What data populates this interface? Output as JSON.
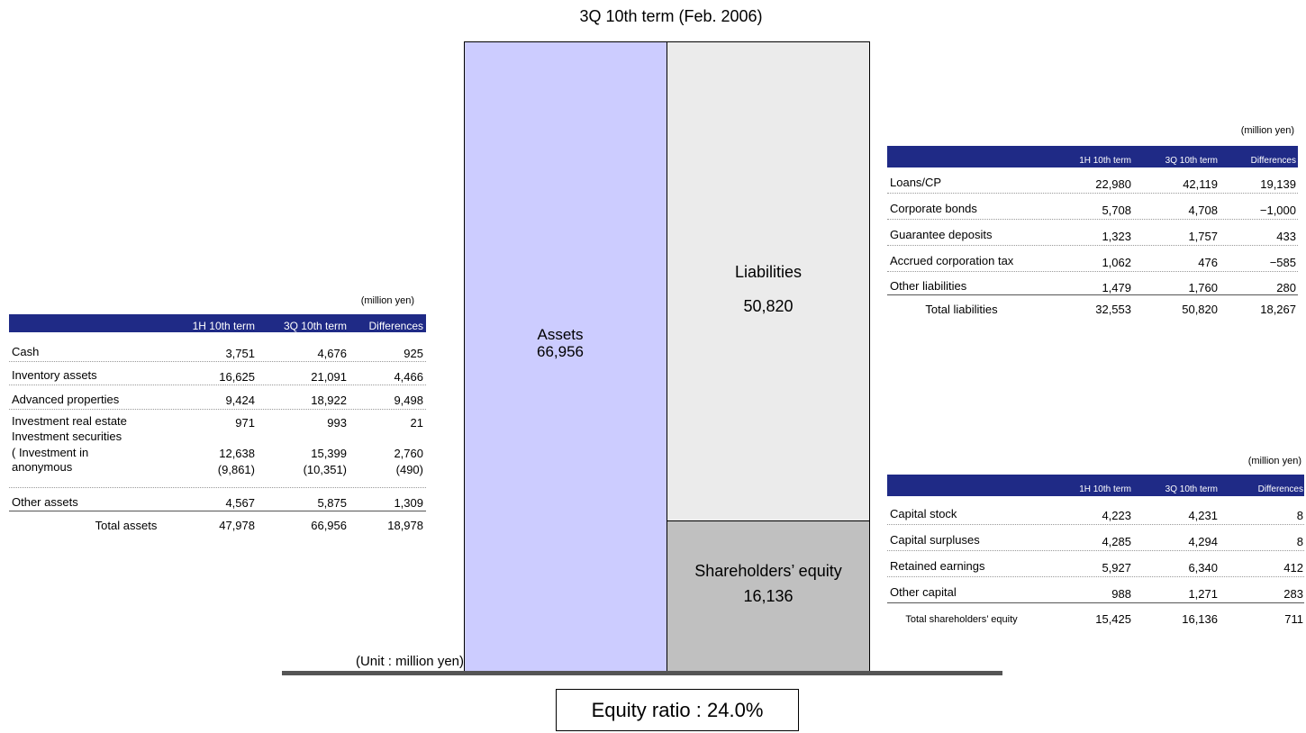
{
  "title": "3Q 10th term (Feb. 2006)",
  "unit_note": "(Unit : million yen)",
  "equity_ratio": "Equity ratio : 24.0%",
  "diagram": {
    "assets": {
      "label": "Assets",
      "value": "66,956"
    },
    "liabilities": {
      "label": "Liabilities",
      "value": "50,820"
    },
    "equity": {
      "label": "Shareholders’ equity",
      "value": "16,136"
    }
  },
  "assets_table": {
    "unit": "(million yen)",
    "header": [
      "1H 10th term",
      "3Q 10th term",
      "Differences"
    ],
    "rows": [
      [
        "Cash",
        "3,751",
        "4,676",
        "925"
      ],
      [
        "Inventory assets",
        "16,625",
        "21,091",
        "4,466"
      ],
      [
        "Advanced properties",
        "9,424",
        "18,922",
        "9,498"
      ],
      [
        "Investment real estate",
        "971",
        "993",
        "21"
      ],
      [
        "Investment securities",
        "12,638",
        "15,399",
        "2,760"
      ],
      [
        "( Investment in anonymous",
        "(9,861)",
        "(10,351)",
        "(490)"
      ],
      [
        "Other assets",
        "4,567",
        "5,875",
        "1,309"
      ]
    ],
    "total": [
      "Total assets",
      "47,978",
      "66,956",
      "18,978"
    ]
  },
  "liabilities_table": {
    "unit": "(million yen)",
    "header": [
      "1H 10th term",
      "3Q 10th term",
      "Differences"
    ],
    "rows": [
      [
        "Loans/CP",
        "22,980",
        "42,119",
        "19,139"
      ],
      [
        "Corporate bonds",
        "5,708",
        "4,708",
        "−1,000"
      ],
      [
        "Guarantee deposits",
        "1,323",
        "1,757",
        "433"
      ],
      [
        "Accrued corporation tax",
        "1,062",
        "476",
        "−585"
      ],
      [
        "Other liabilities",
        "1,479",
        "1,760",
        "280"
      ]
    ],
    "total": [
      "Total liabilities",
      "32,553",
      "50,820",
      "18,267"
    ]
  },
  "equity_table": {
    "unit": "(million yen)",
    "header": [
      "1H 10th term",
      "3Q 10th term",
      "Differences"
    ],
    "rows": [
      [
        "Capital stock",
        "4,223",
        "4,231",
        "8"
      ],
      [
        "Capital surpluses",
        "4,285",
        "4,294",
        "8"
      ],
      [
        "Retained earnings",
        "5,927",
        "6,340",
        "412"
      ],
      [
        "Other capital",
        "988",
        "1,271",
        "283"
      ]
    ],
    "total": [
      "Total shareholders’ equity",
      "15,425",
      "16,136",
      "711"
    ]
  }
}
